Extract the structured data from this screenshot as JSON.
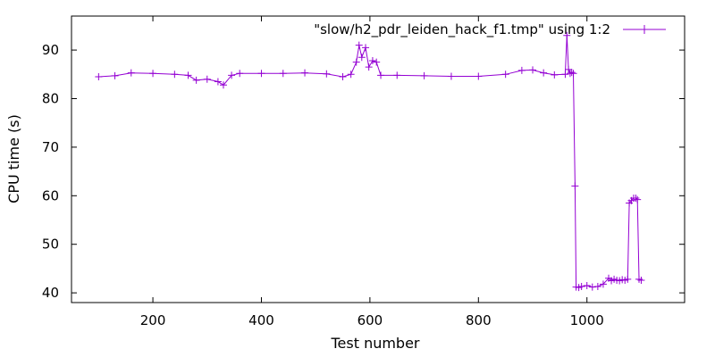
{
  "chart_data": {
    "type": "line",
    "title": "",
    "xlabel": "Test number",
    "ylabel": "CPU time (s)",
    "xlim": [
      50,
      1180
    ],
    "ylim": [
      38,
      97
    ],
    "x_ticks": [
      200,
      400,
      600,
      800,
      1000
    ],
    "y_ticks": [
      40,
      50,
      60,
      70,
      80,
      90
    ],
    "x_tick_labels": [
      "200",
      "400",
      "600",
      "800",
      "1000"
    ],
    "y_tick_labels": [
      "40",
      "50",
      "60",
      "70",
      "80",
      "90"
    ],
    "legend_position": "top-right",
    "grid": false,
    "series": [
      {
        "name": "\"slow/h2_pdr_leiden_hack_f1.tmp\" using 1:2",
        "color": "#9400d3",
        "marker": "plus",
        "x": [
          100,
          130,
          160,
          200,
          240,
          265,
          280,
          300,
          320,
          330,
          345,
          360,
          400,
          440,
          480,
          520,
          550,
          565,
          575,
          580,
          585,
          592,
          598,
          605,
          612,
          620,
          650,
          700,
          750,
          800,
          850,
          880,
          900,
          920,
          940,
          960,
          963,
          966,
          969,
          972,
          975,
          978,
          980,
          985,
          990,
          1000,
          1010,
          1020,
          1030,
          1040,
          1045,
          1050,
          1055,
          1060,
          1065,
          1070,
          1075,
          1078,
          1082,
          1086,
          1090,
          1093,
          1096,
          1100
        ],
        "y": [
          84.5,
          84.7,
          85.3,
          85.2,
          85.0,
          84.8,
          83.8,
          84.0,
          83.5,
          82.8,
          84.8,
          85.2,
          85.2,
          85.2,
          85.3,
          85.1,
          84.5,
          85.0,
          87.5,
          91.0,
          88.5,
          90.5,
          86.5,
          87.8,
          87.5,
          84.8,
          84.8,
          84.7,
          84.6,
          84.6,
          85.0,
          85.8,
          85.9,
          85.3,
          84.9,
          85.0,
          93.0,
          86.0,
          85.2,
          85.4,
          85.2,
          62.0,
          41.2,
          41.1,
          41.3,
          41.5,
          41.2,
          41.3,
          41.8,
          43.0,
          42.5,
          42.8,
          42.6,
          42.5,
          42.7,
          42.6,
          42.8,
          58.5,
          59.0,
          59.5,
          59.5,
          59.2,
          42.8,
          42.6
        ]
      }
    ]
  }
}
